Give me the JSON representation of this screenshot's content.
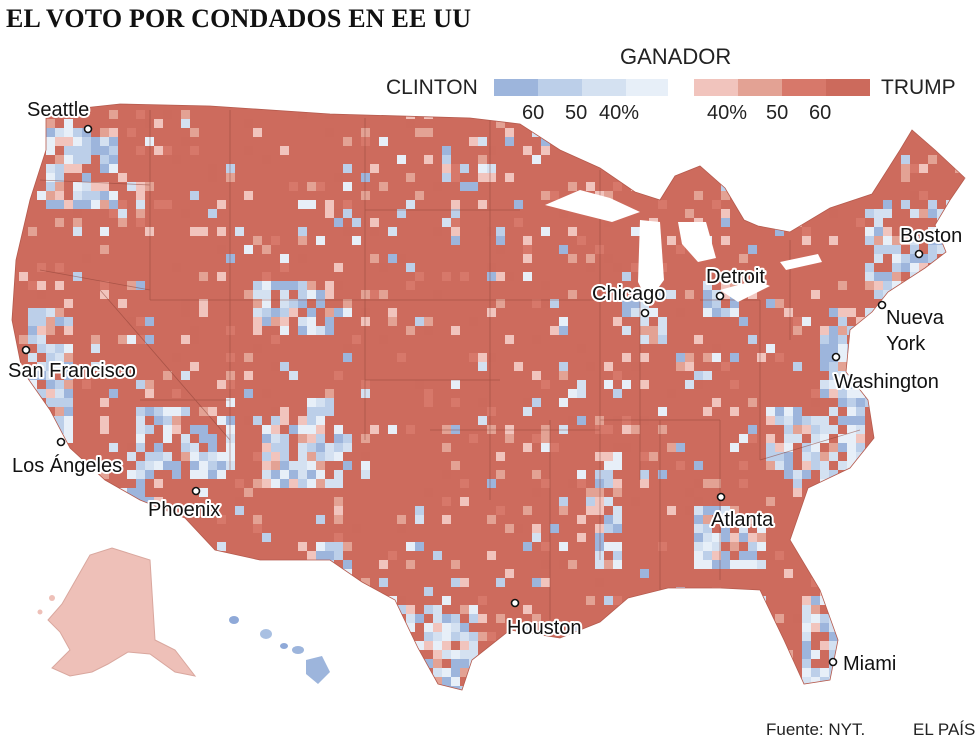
{
  "title": "EL VOTO POR CONDADOS EN EE UU",
  "legend": {
    "title": "GANADOR",
    "left_label": "CLINTON",
    "right_label": "TRUMP",
    "clinton_ticks": [
      "60",
      "50",
      "40%"
    ],
    "trump_ticks": [
      "40%",
      "50",
      "60"
    ],
    "clinton_colors": [
      "#9db5dc",
      "#bccfe9",
      "#d4e1f1",
      "#e7eff8"
    ],
    "trump_colors": [
      "#f1c4bd",
      "#e3a294",
      "#d7786a",
      "#cc6a5c"
    ]
  },
  "colors": {
    "trump_base": "#cd6b5d",
    "clinton_base": "#a9c0e2",
    "border": "#8a3f35"
  },
  "cities": [
    {
      "name": "Seattle",
      "label": "Seattle"
    },
    {
      "name": "san-francisco",
      "label": "San Francisco"
    },
    {
      "name": "los-angeles",
      "label": "Los Ángeles"
    },
    {
      "name": "phoenix",
      "label": "Phoenix"
    },
    {
      "name": "chicago",
      "label": "Chicago"
    },
    {
      "name": "detroit",
      "label": "Detroit"
    },
    {
      "name": "boston",
      "label": "Boston"
    },
    {
      "name": "nueva-york",
      "label": "Nueva York"
    },
    {
      "name": "washington",
      "label": "Washington"
    },
    {
      "name": "atlanta",
      "label": "Atlanta"
    },
    {
      "name": "houston",
      "label": "Houston"
    },
    {
      "name": "miami",
      "label": "Miami"
    }
  ],
  "footer": {
    "source": "Fuente: NYT.",
    "credit": "EL PAÍS"
  }
}
